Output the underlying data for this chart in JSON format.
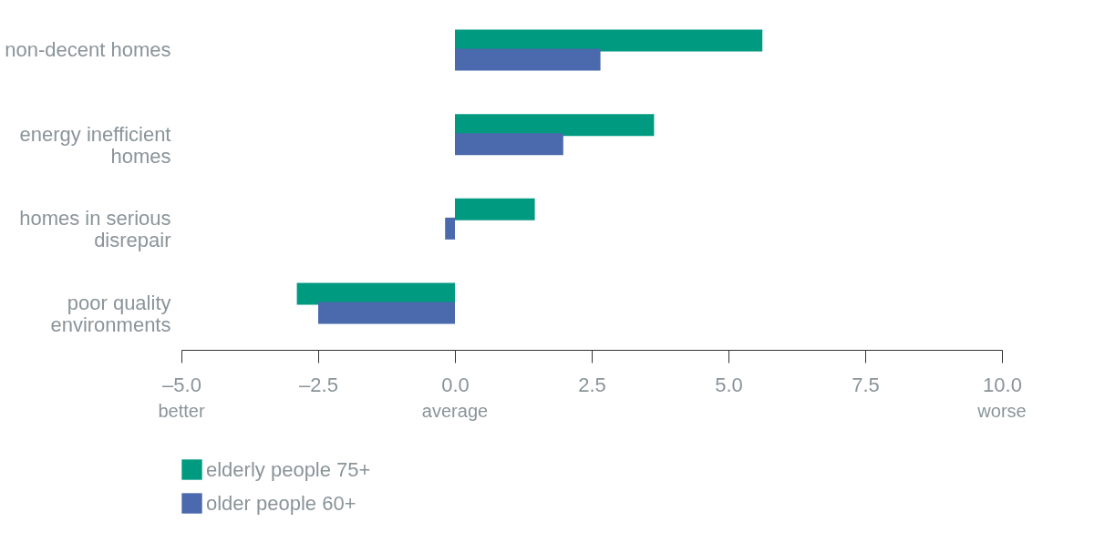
{
  "chart_data": {
    "type": "bar",
    "orientation": "horizontal",
    "categories": [
      "non-decent homes",
      "energy inefficient homes",
      "homes in serious disrepair",
      "poor quality environments"
    ],
    "series": [
      {
        "name": "elderly people 75+",
        "color": "#009a80",
        "values": [
          5.62,
          3.64,
          1.46,
          -2.89
        ]
      },
      {
        "name": "older people 60+",
        "color": "#4a6aad",
        "values": [
          2.66,
          1.98,
          -0.18,
          -2.5
        ]
      }
    ],
    "xlim": [
      -5,
      10
    ],
    "xticks": [
      {
        "value": -5,
        "label": "–5.0"
      },
      {
        "value": -2.5,
        "label": "–2.5"
      },
      {
        "value": 0,
        "label": "0.0"
      },
      {
        "value": 2.5,
        "label": "2.5"
      },
      {
        "value": 5,
        "label": "5.0"
      },
      {
        "value": 7.5,
        "label": "7.5"
      },
      {
        "value": 10,
        "label": "10.0"
      }
    ],
    "annotations": [
      "better",
      "average",
      "worse"
    ],
    "grid": false,
    "legend": "bottom left"
  }
}
